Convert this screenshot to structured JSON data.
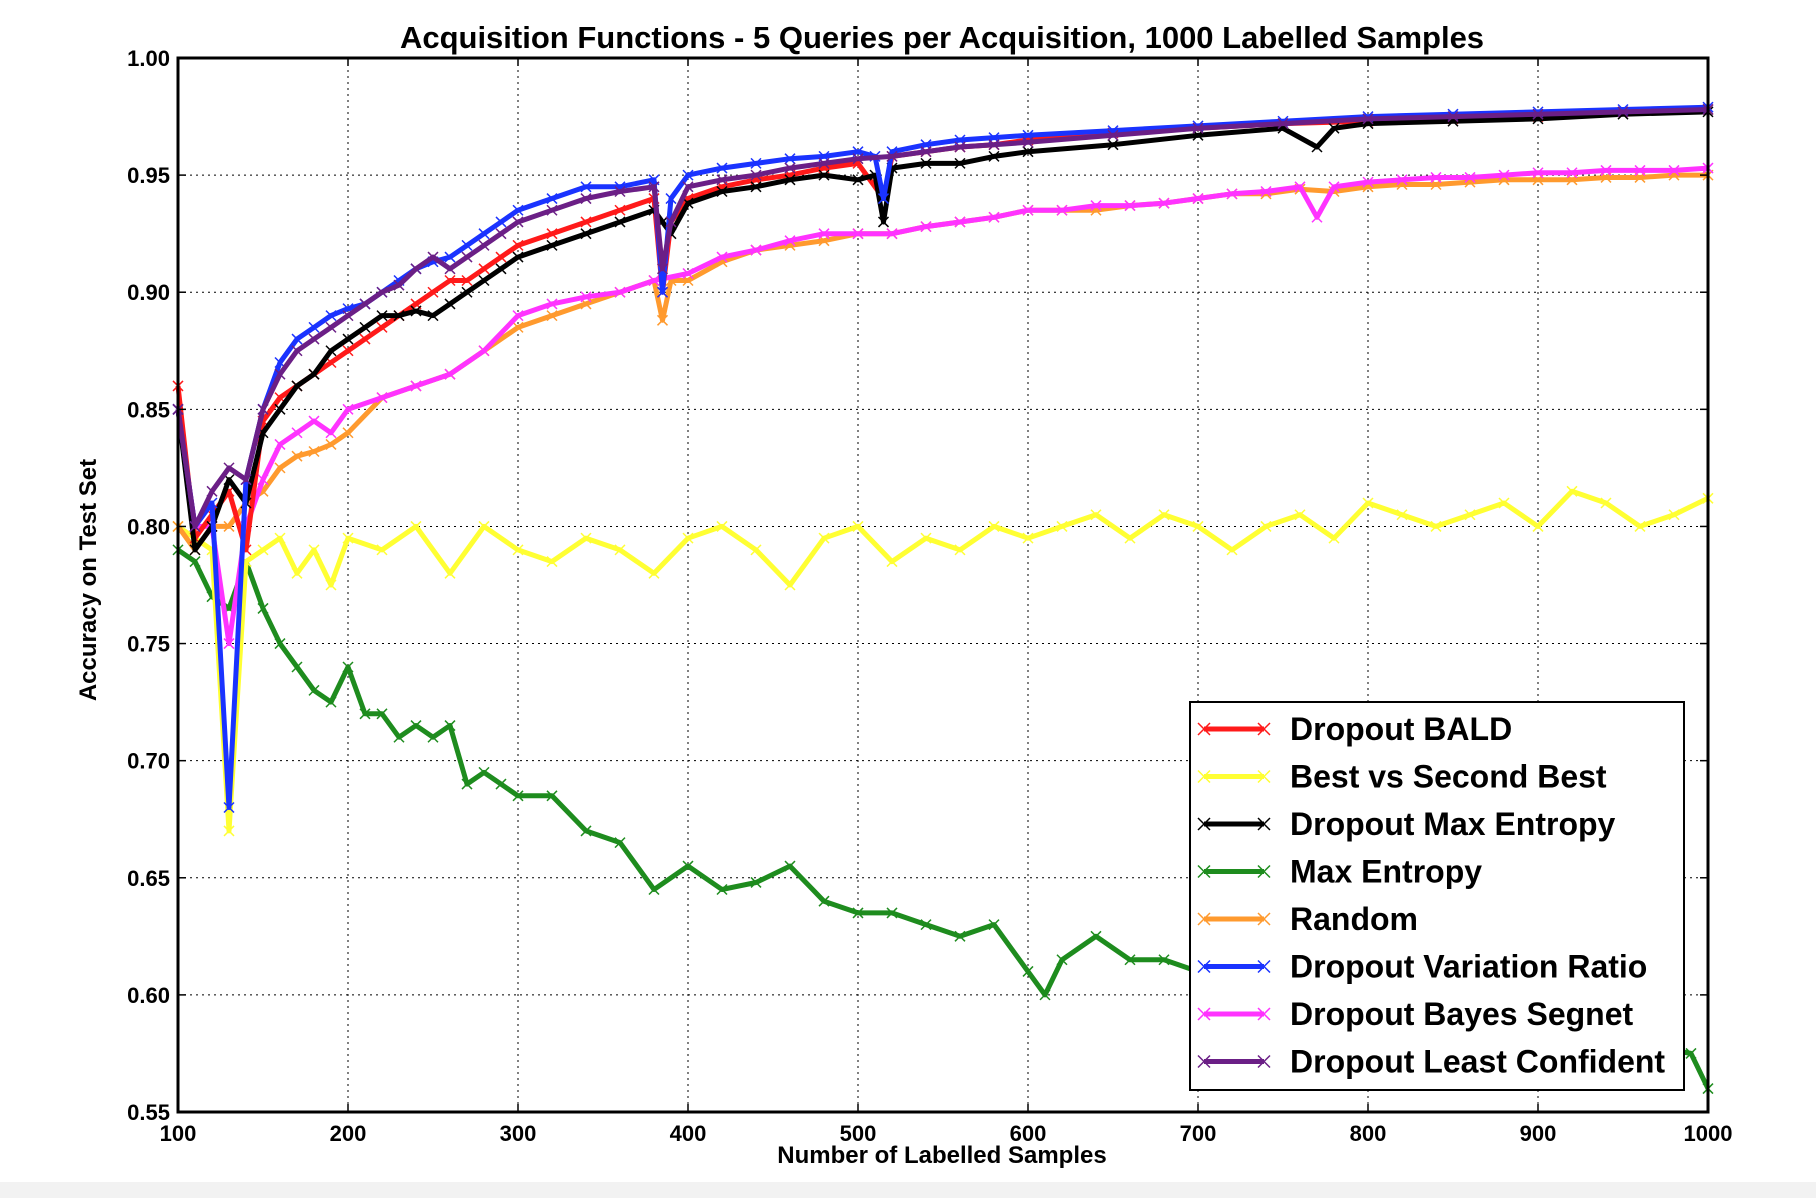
{
  "chart_data": {
    "type": "line",
    "title": "Acquisition Functions - 5 Queries per Acquisition, 1000 Labelled Samples",
    "xlabel": "Number of Labelled Samples",
    "ylabel": "Accuracy on Test Set",
    "xlim": [
      100,
      1000
    ],
    "ylim": [
      0.55,
      1.0
    ],
    "xticks": [
      100,
      200,
      300,
      400,
      500,
      600,
      700,
      800,
      900,
      1000
    ],
    "yticks": [
      0.55,
      0.6,
      0.65,
      0.7,
      0.75,
      0.8,
      0.85,
      0.9,
      0.95,
      1.0
    ],
    "ytick_labels": [
      "0.55",
      "0.60",
      "0.65",
      "0.70",
      "0.75",
      "0.80",
      "0.85",
      "0.90",
      "0.95",
      "1.00"
    ],
    "grid": true,
    "legend_position": "bottom-right",
    "marker": "x",
    "series": [
      {
        "name": "Dropout BALD",
        "color": "#ff1a1a",
        "x": [
          100,
          110,
          120,
          130,
          140,
          150,
          160,
          170,
          180,
          190,
          200,
          210,
          220,
          230,
          240,
          250,
          260,
          270,
          280,
          290,
          300,
          320,
          340,
          360,
          380,
          385,
          390,
          400,
          420,
          440,
          460,
          480,
          500,
          515,
          520,
          540,
          560,
          580,
          600,
          650,
          700,
          750,
          800,
          850,
          900,
          950,
          1000
        ],
        "y": [
          0.86,
          0.795,
          0.805,
          0.815,
          0.79,
          0.845,
          0.855,
          0.86,
          0.865,
          0.87,
          0.875,
          0.88,
          0.885,
          0.89,
          0.895,
          0.9,
          0.905,
          0.905,
          0.91,
          0.915,
          0.92,
          0.925,
          0.93,
          0.935,
          0.94,
          0.9,
          0.93,
          0.94,
          0.945,
          0.948,
          0.95,
          0.953,
          0.955,
          0.94,
          0.958,
          0.96,
          0.962,
          0.963,
          0.965,
          0.968,
          0.97,
          0.972,
          0.973,
          0.974,
          0.975,
          0.977,
          0.978
        ]
      },
      {
        "name": "Best vs Second Best",
        "color": "#ffff33",
        "x": [
          100,
          110,
          120,
          130,
          140,
          150,
          160,
          170,
          180,
          190,
          200,
          220,
          240,
          260,
          280,
          300,
          320,
          340,
          360,
          380,
          400,
          420,
          440,
          460,
          480,
          500,
          520,
          540,
          560,
          580,
          600,
          620,
          640,
          660,
          680,
          700,
          720,
          740,
          760,
          780,
          800,
          820,
          840,
          860,
          880,
          900,
          920,
          940,
          960,
          980,
          1000
        ],
        "y": [
          0.8,
          0.795,
          0.79,
          0.67,
          0.785,
          0.79,
          0.795,
          0.78,
          0.79,
          0.775,
          0.795,
          0.79,
          0.8,
          0.78,
          0.8,
          0.79,
          0.785,
          0.795,
          0.79,
          0.78,
          0.795,
          0.8,
          0.79,
          0.775,
          0.795,
          0.8,
          0.785,
          0.795,
          0.79,
          0.8,
          0.795,
          0.8,
          0.805,
          0.795,
          0.805,
          0.8,
          0.79,
          0.8,
          0.805,
          0.795,
          0.81,
          0.805,
          0.8,
          0.805,
          0.81,
          0.8,
          0.815,
          0.81,
          0.8,
          0.805,
          0.812
        ]
      },
      {
        "name": "Dropout Max Entropy",
        "color": "#000000",
        "x": [
          100,
          110,
          120,
          130,
          140,
          150,
          160,
          170,
          180,
          190,
          200,
          210,
          220,
          230,
          240,
          250,
          260,
          270,
          280,
          290,
          300,
          320,
          340,
          360,
          380,
          385,
          390,
          400,
          420,
          440,
          460,
          480,
          500,
          510,
          515,
          520,
          540,
          560,
          580,
          600,
          650,
          700,
          750,
          770,
          780,
          800,
          850,
          900,
          950,
          1000
        ],
        "y": [
          0.85,
          0.79,
          0.8,
          0.82,
          0.81,
          0.84,
          0.85,
          0.86,
          0.865,
          0.875,
          0.88,
          0.885,
          0.89,
          0.89,
          0.892,
          0.89,
          0.895,
          0.9,
          0.905,
          0.91,
          0.915,
          0.92,
          0.925,
          0.93,
          0.935,
          0.93,
          0.925,
          0.938,
          0.943,
          0.945,
          0.948,
          0.95,
          0.948,
          0.95,
          0.93,
          0.953,
          0.955,
          0.955,
          0.958,
          0.96,
          0.963,
          0.967,
          0.97,
          0.962,
          0.97,
          0.972,
          0.973,
          0.974,
          0.976,
          0.977
        ]
      },
      {
        "name": "Max Entropy",
        "color": "#1e8c1e",
        "x": [
          100,
          110,
          120,
          130,
          140,
          150,
          160,
          170,
          180,
          190,
          200,
          210,
          220,
          230,
          240,
          250,
          260,
          270,
          280,
          290,
          300,
          320,
          340,
          360,
          380,
          400,
          420,
          440,
          460,
          480,
          500,
          520,
          540,
          560,
          580,
          600,
          610,
          620,
          640,
          660,
          680,
          700,
          990,
          1000
        ],
        "y": [
          0.79,
          0.785,
          0.77,
          0.765,
          0.785,
          0.765,
          0.75,
          0.74,
          0.73,
          0.725,
          0.74,
          0.72,
          0.72,
          0.71,
          0.715,
          0.71,
          0.715,
          0.69,
          0.695,
          0.69,
          0.685,
          0.685,
          0.67,
          0.665,
          0.645,
          0.655,
          0.645,
          0.648,
          0.655,
          0.64,
          0.635,
          0.635,
          0.63,
          0.625,
          0.63,
          0.61,
          0.6,
          0.615,
          0.625,
          0.615,
          0.615,
          0.61,
          0.575,
          0.56
        ]
      },
      {
        "name": "Random",
        "color": "#ff9a2e",
        "x": [
          100,
          110,
          120,
          130,
          140,
          150,
          160,
          170,
          180,
          190,
          200,
          220,
          240,
          260,
          280,
          300,
          320,
          340,
          360,
          380,
          385,
          390,
          400,
          420,
          440,
          460,
          480,
          500,
          520,
          540,
          560,
          580,
          600,
          620,
          640,
          660,
          680,
          700,
          720,
          740,
          760,
          780,
          800,
          820,
          840,
          860,
          880,
          900,
          920,
          940,
          960,
          980,
          1000
        ],
        "y": [
          0.8,
          0.79,
          0.8,
          0.8,
          0.81,
          0.815,
          0.825,
          0.83,
          0.832,
          0.835,
          0.84,
          0.855,
          0.86,
          0.865,
          0.875,
          0.885,
          0.89,
          0.895,
          0.9,
          0.905,
          0.888,
          0.905,
          0.905,
          0.913,
          0.918,
          0.92,
          0.922,
          0.925,
          0.925,
          0.928,
          0.93,
          0.932,
          0.935,
          0.935,
          0.935,
          0.937,
          0.938,
          0.94,
          0.942,
          0.942,
          0.944,
          0.943,
          0.945,
          0.946,
          0.946,
          0.947,
          0.948,
          0.948,
          0.948,
          0.949,
          0.949,
          0.95,
          0.95
        ]
      },
      {
        "name": "Dropout Variation Ratio",
        "color": "#1a33ff",
        "x": [
          100,
          110,
          120,
          130,
          140,
          150,
          160,
          170,
          180,
          190,
          200,
          210,
          220,
          230,
          240,
          250,
          260,
          270,
          280,
          290,
          300,
          320,
          340,
          360,
          380,
          385,
          390,
          400,
          420,
          440,
          460,
          480,
          500,
          510,
          515,
          520,
          540,
          560,
          580,
          600,
          650,
          700,
          750,
          800,
          850,
          900,
          950,
          1000
        ],
        "y": [
          0.85,
          0.8,
          0.81,
          0.68,
          0.82,
          0.85,
          0.87,
          0.88,
          0.885,
          0.89,
          0.893,
          0.895,
          0.9,
          0.905,
          0.91,
          0.913,
          0.915,
          0.92,
          0.925,
          0.93,
          0.935,
          0.94,
          0.945,
          0.945,
          0.948,
          0.9,
          0.94,
          0.95,
          0.953,
          0.955,
          0.957,
          0.958,
          0.96,
          0.958,
          0.94,
          0.96,
          0.963,
          0.965,
          0.966,
          0.967,
          0.969,
          0.971,
          0.973,
          0.975,
          0.976,
          0.977,
          0.978,
          0.979
        ]
      },
      {
        "name": "Dropout Bayes Segnet",
        "color": "#ff33ff",
        "x": [
          100,
          110,
          120,
          130,
          140,
          150,
          160,
          170,
          180,
          190,
          200,
          220,
          240,
          260,
          280,
          300,
          320,
          340,
          360,
          380,
          400,
          420,
          440,
          460,
          480,
          500,
          520,
          540,
          560,
          580,
          600,
          620,
          640,
          660,
          680,
          700,
          720,
          740,
          760,
          770,
          780,
          800,
          820,
          840,
          860,
          880,
          900,
          920,
          940,
          960,
          980,
          1000
        ],
        "y": [
          0.85,
          0.8,
          0.8,
          0.75,
          0.8,
          0.82,
          0.835,
          0.84,
          0.845,
          0.84,
          0.85,
          0.855,
          0.86,
          0.865,
          0.875,
          0.89,
          0.895,
          0.898,
          0.9,
          0.905,
          0.908,
          0.915,
          0.918,
          0.922,
          0.925,
          0.925,
          0.925,
          0.928,
          0.93,
          0.932,
          0.935,
          0.935,
          0.937,
          0.937,
          0.938,
          0.94,
          0.942,
          0.943,
          0.945,
          0.932,
          0.945,
          0.947,
          0.948,
          0.949,
          0.949,
          0.95,
          0.951,
          0.951,
          0.952,
          0.952,
          0.952,
          0.953
        ]
      },
      {
        "name": "Dropout Least Confident",
        "color": "#6b1f86",
        "x": [
          100,
          110,
          120,
          130,
          140,
          150,
          160,
          170,
          180,
          190,
          200,
          210,
          220,
          230,
          240,
          250,
          260,
          270,
          280,
          290,
          300,
          320,
          340,
          360,
          380,
          385,
          390,
          400,
          420,
          440,
          460,
          480,
          500,
          520,
          540,
          560,
          580,
          600,
          650,
          700,
          750,
          800,
          850,
          900,
          950,
          1000
        ],
        "y": [
          0.85,
          0.8,
          0.815,
          0.825,
          0.82,
          0.85,
          0.865,
          0.875,
          0.88,
          0.885,
          0.89,
          0.895,
          0.9,
          0.903,
          0.91,
          0.915,
          0.91,
          0.915,
          0.92,
          0.925,
          0.93,
          0.935,
          0.94,
          0.943,
          0.945,
          0.91,
          0.93,
          0.945,
          0.948,
          0.95,
          0.953,
          0.955,
          0.957,
          0.958,
          0.96,
          0.962,
          0.963,
          0.964,
          0.967,
          0.97,
          0.972,
          0.974,
          0.975,
          0.976,
          0.977,
          0.978
        ]
      }
    ]
  }
}
